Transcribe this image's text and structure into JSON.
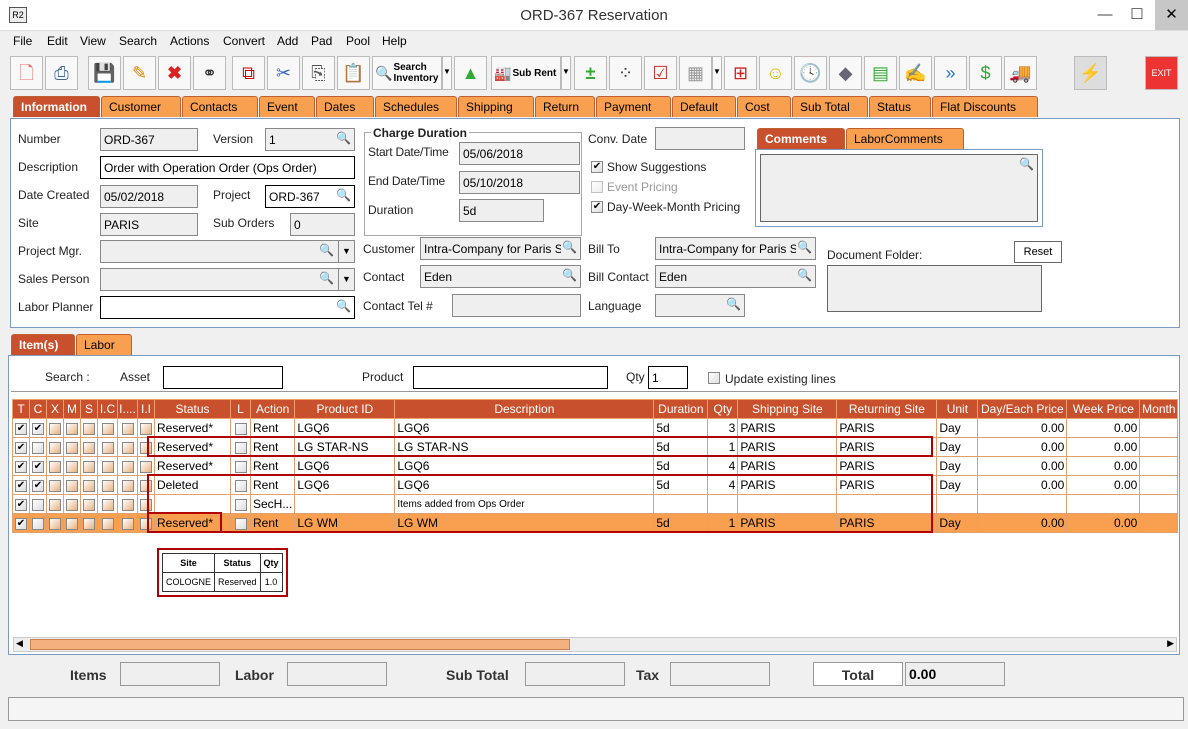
{
  "window": {
    "title": "ORD-367 Reservation",
    "app_icon": "R2",
    "minimize": "—",
    "maximize": "☐",
    "close": "✕"
  },
  "menu": [
    "File",
    "Edit",
    "View",
    "Search",
    "Actions",
    "Convert",
    "Add",
    "Pad",
    "Pool",
    "Help"
  ],
  "toolbar": {
    "search_inventory": "Search Inventory",
    "sub_rent": "Sub Rent",
    "exit": "EXIT"
  },
  "tabs": [
    "Information",
    "Customer",
    "Contacts",
    "Event",
    "Dates",
    "Schedules",
    "Shipping",
    "Return",
    "Payment",
    "Default",
    "Cost",
    "Sub Total",
    "Status",
    "Flat Discounts"
  ],
  "info": {
    "number_label": "Number",
    "number": "ORD-367",
    "version_label": "Version",
    "version": "1",
    "description_label": "Description",
    "description": "Order with Operation Order (Ops Order)",
    "date_created_label": "Date Created",
    "date_created": "05/02/2018",
    "project_label": "Project",
    "project": "ORD-367",
    "site_label": "Site",
    "site": "PARIS",
    "sub_orders_label": "Sub Orders",
    "sub_orders": "0",
    "project_mgr_label": "Project Mgr.",
    "project_mgr": "",
    "sales_person_label": "Sales Person",
    "sales_person": "",
    "labor_planner_label": "Labor Planner",
    "labor_planner": "",
    "charge_duration_title": "Charge Duration",
    "start_label": "Start Date/Time",
    "start": "05/06/2018",
    "end_label": "End Date/Time",
    "end": "05/10/2018",
    "duration_label": "Duration",
    "duration": "5d",
    "conv_date_label": "Conv. Date",
    "conv_date": "",
    "show_suggestions": "Show Suggestions",
    "show_suggestions_checked": true,
    "event_pricing": "Event Pricing",
    "event_pricing_checked": false,
    "dwm_pricing": "Day-Week-Month Pricing",
    "dwm_pricing_checked": true,
    "customer_label": "Customer",
    "customer": "Intra-Company for Paris Site",
    "contact_label": "Contact",
    "contact": "Eden",
    "contact_tel_label": "Contact Tel #",
    "contact_tel": "",
    "bill_to_label": "Bill To",
    "bill_to": "Intra-Company for Paris Site",
    "bill_contact_label": "Bill Contact",
    "bill_contact": "Eden",
    "language_label": "Language",
    "language": "",
    "comments_tabs": [
      "Comments",
      "LaborComments"
    ],
    "document_folder_label": "Document Folder:",
    "reset": "Reset"
  },
  "item_tabs": [
    "Item(s)",
    "Labor"
  ],
  "search": {
    "label": "Search :",
    "asset_label": "Asset",
    "asset": "",
    "product_label": "Product",
    "product": "",
    "qty_label": "Qty",
    "qty": "1",
    "update_label": "Update existing lines"
  },
  "grid": {
    "columns": [
      "T",
      "C",
      "X",
      "M",
      "S",
      "I.C",
      "I....",
      "I.I",
      "Status",
      "L",
      "Action",
      "Product ID",
      "Description",
      "Duration",
      "Qty",
      "Shipping Site",
      "Returning Site",
      "Unit",
      "Day/Each Price",
      "Week Price",
      "Month"
    ],
    "rows": [
      {
        "checks": [
          true,
          true,
          false,
          false,
          false,
          false,
          false,
          false
        ],
        "status": "Reserved*",
        "action": "Rent",
        "product": "LGQ6",
        "description": "LGQ6",
        "duration": "5d",
        "qty": "3",
        "ship": "PARIS",
        "ret": "PARIS",
        "unit": "Day",
        "day": "0.00",
        "week": "0.00"
      },
      {
        "checks": [
          true,
          false,
          false,
          false,
          false,
          false,
          false,
          false
        ],
        "status": "Reserved*",
        "action": "Rent",
        "product": "LG STAR-NS",
        "description": "LG STAR-NS",
        "duration": "5d",
        "qty": "1",
        "ship": "PARIS",
        "ret": "PARIS",
        "unit": "Day",
        "day": "0.00",
        "week": "0.00"
      },
      {
        "checks": [
          true,
          true,
          false,
          false,
          false,
          false,
          false,
          false
        ],
        "status": "Reserved*",
        "action": "Rent",
        "product": "LGQ6",
        "description": "LGQ6",
        "duration": "5d",
        "qty": "4",
        "ship": "PARIS",
        "ret": "PARIS",
        "unit": "Day",
        "day": "0.00",
        "week": "0.00"
      },
      {
        "checks": [
          true,
          true,
          false,
          false,
          false,
          false,
          false,
          false
        ],
        "status": "Deleted",
        "action": "Rent",
        "product": "LGQ6",
        "description": "LGQ6",
        "duration": "5d",
        "qty": "4",
        "ship": "PARIS",
        "ret": "PARIS",
        "unit": "Day",
        "day": "0.00",
        "week": "0.00"
      },
      {
        "checks": [
          true,
          false,
          false,
          false,
          false,
          false,
          false,
          false
        ],
        "status": "",
        "action": "SecH...",
        "product": "",
        "description": "Items added from Ops Order",
        "duration": "",
        "qty": "",
        "ship": "",
        "ret": "",
        "unit": "",
        "day": "",
        "week": ""
      },
      {
        "checks": [
          true,
          false,
          false,
          false,
          false,
          false,
          false,
          false
        ],
        "status": "Reserved*",
        "action": "Rent",
        "product": "LG WM",
        "description": "LG WM",
        "duration": "5d",
        "qty": "1",
        "ship": "PARIS",
        "ret": "PARIS",
        "unit": "Day",
        "day": "0.00",
        "week": "0.00",
        "selected": true
      }
    ]
  },
  "popup": {
    "headers": [
      "Site",
      "Status",
      "Qty"
    ],
    "row": [
      "COLOGNE",
      "Reserved",
      "1.0"
    ]
  },
  "totals": {
    "items_label": "Items",
    "labor_label": "Labor",
    "sub_total_label": "Sub Total",
    "tax_label": "Tax",
    "total_label": "Total",
    "total": "0.00"
  },
  "colors": {
    "tab": "#f9a050",
    "tab_active": "#c8502c",
    "highlight": "#b00000"
  }
}
